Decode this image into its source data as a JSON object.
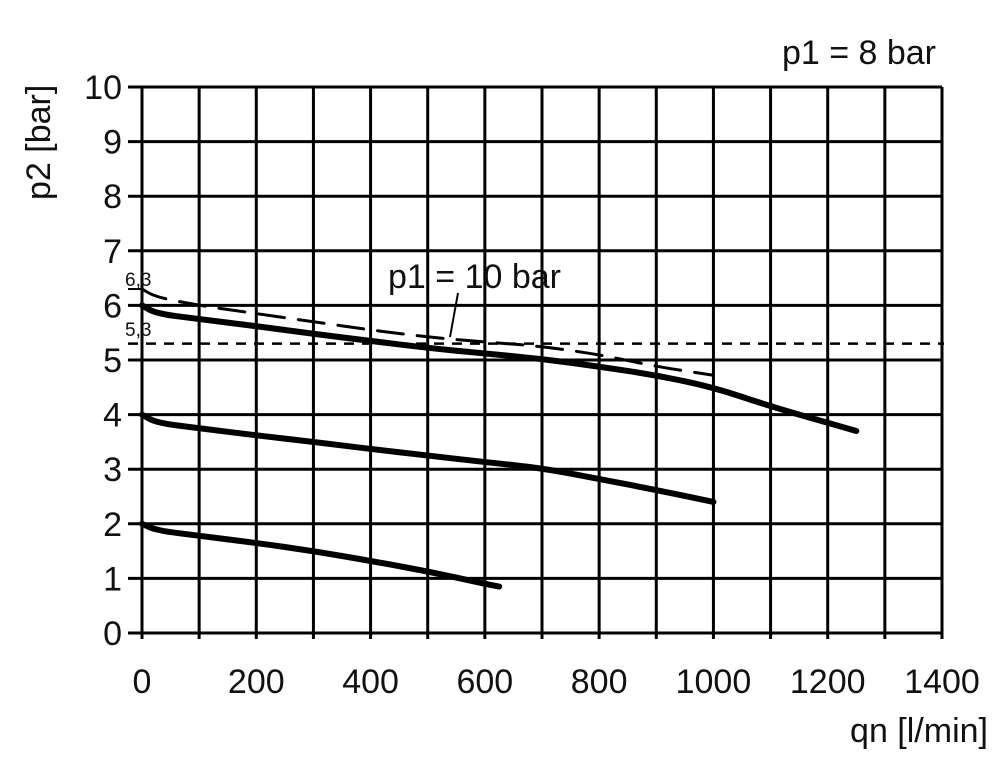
{
  "chart_data": {
    "type": "line",
    "xlabel": "qn [l/min]",
    "ylabel": "p2 [bar]",
    "xlim": [
      0,
      1400
    ],
    "ylim": [
      0,
      10
    ],
    "xticks": [
      0,
      200,
      400,
      600,
      800,
      1000,
      1200,
      1400
    ],
    "yticks": [
      0,
      1,
      2,
      3,
      4,
      5,
      6,
      7,
      8,
      9,
      10
    ],
    "grid": true,
    "grid_x_step": 100,
    "grid_y_step": 1,
    "annotations": [
      {
        "text": "p1 = 8 bar",
        "placement": "top-right"
      },
      {
        "text": "p1 = 10 bar",
        "points_to": "dashed curve"
      },
      {
        "text": "6,3",
        "y": 6.3
      },
      {
        "text": "5,3",
        "y": 5.3
      }
    ],
    "reference_line": {
      "y": 5.3,
      "style": "dashed"
    },
    "series": [
      {
        "style": "solid",
        "x": [
          0,
          25,
          100,
          200,
          300,
          400,
          500,
          600,
          700,
          800,
          900,
          1000,
          1100,
          1200,
          1250
        ],
        "y": [
          6.0,
          5.85,
          5.75,
          5.62,
          5.48,
          5.35,
          5.22,
          5.12,
          5.02,
          4.88,
          4.72,
          4.5,
          4.15,
          3.85,
          3.7
        ]
      },
      {
        "style": "dashed",
        "name": "p1 = 10 bar",
        "x": [
          0,
          25,
          100,
          200,
          300,
          400,
          500,
          600,
          700,
          800,
          900,
          1000
        ],
        "y": [
          6.3,
          6.15,
          6.0,
          5.85,
          5.7,
          5.55,
          5.42,
          5.33,
          5.25,
          5.1,
          4.88,
          4.72
        ]
      },
      {
        "style": "solid",
        "x": [
          0,
          25,
          100,
          200,
          300,
          400,
          500,
          600,
          700,
          800,
          900,
          1000
        ],
        "y": [
          4.0,
          3.85,
          3.75,
          3.62,
          3.5,
          3.37,
          3.25,
          3.13,
          3.02,
          2.82,
          2.62,
          2.4
        ]
      },
      {
        "style": "solid",
        "x": [
          0,
          25,
          100,
          200,
          300,
          400,
          500,
          600,
          625
        ],
        "y": [
          2.0,
          1.88,
          1.78,
          1.65,
          1.5,
          1.32,
          1.13,
          0.9,
          0.85
        ]
      }
    ],
    "color": "#000000"
  }
}
